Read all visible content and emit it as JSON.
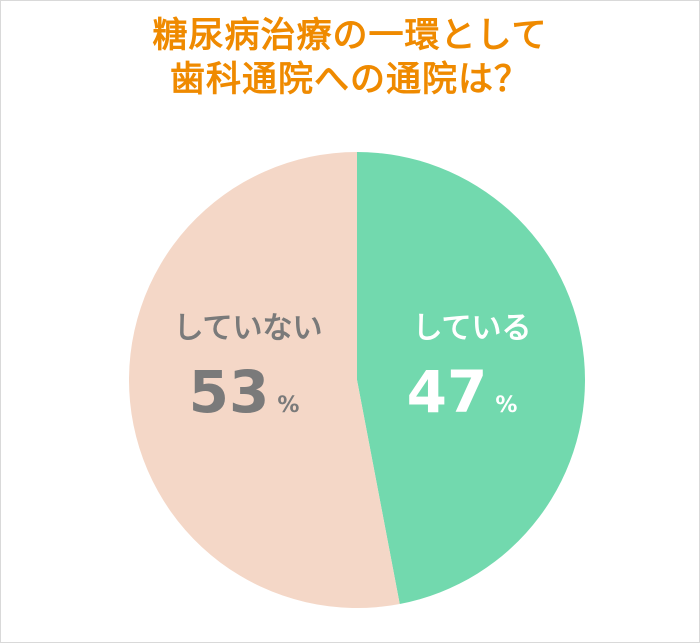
{
  "title": {
    "line1": "糖尿病治療の一環として",
    "line2": "歯科通院への通院は？",
    "color": "#ef8a00"
  },
  "chart_data": {
    "type": "pie",
    "start": "12 o'clock",
    "direction": "clockwise",
    "slices": [
      {
        "label": "している",
        "value": 47,
        "unit": "%",
        "color": "#72d9ae",
        "text_color": "#ffffff"
      },
      {
        "label": "していない",
        "value": 53,
        "unit": "%",
        "color": "#f4d7c7",
        "text_color": "#7a7a7a"
      }
    ]
  }
}
